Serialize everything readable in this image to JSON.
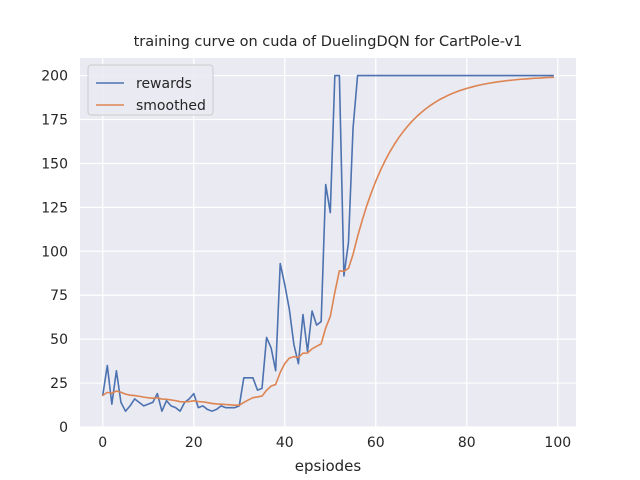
{
  "chart_data": {
    "type": "line",
    "title": "training curve on cuda of DuelingDQN for CartPole-v1",
    "xlabel": "epsiodes",
    "ylabel": "",
    "xlim": [
      -5,
      104
    ],
    "ylim": [
      0,
      210
    ],
    "xticks": [
      0,
      20,
      40,
      60,
      80,
      100
    ],
    "yticks": [
      0,
      25,
      50,
      75,
      100,
      125,
      150,
      175,
      200
    ],
    "grid": true,
    "legend_position": "top-left",
    "background": "#eaeaf2",
    "series": [
      {
        "name": "rewards",
        "color": "#4c72b0",
        "x": [
          0,
          1,
          2,
          3,
          4,
          5,
          6,
          7,
          8,
          9,
          10,
          11,
          12,
          13,
          14,
          15,
          16,
          17,
          18,
          19,
          20,
          21,
          22,
          23,
          24,
          25,
          26,
          27,
          28,
          29,
          30,
          31,
          32,
          33,
          34,
          35,
          36,
          37,
          38,
          39,
          40,
          41,
          42,
          43,
          44,
          45,
          46,
          47,
          48,
          49,
          50,
          51,
          52,
          53,
          54,
          55,
          56,
          57,
          58,
          59,
          60,
          61,
          62,
          63,
          64,
          65,
          66,
          67,
          68,
          69,
          70,
          71,
          72,
          73,
          74,
          75,
          76,
          77,
          78,
          79,
          80,
          81,
          82,
          83,
          84,
          85,
          86,
          87,
          88,
          89,
          90,
          91,
          92,
          93,
          94,
          95,
          96,
          97,
          98,
          99
        ],
        "y": [
          18,
          35,
          13,
          32,
          14,
          9,
          12,
          16,
          14,
          12,
          13,
          14,
          19,
          9,
          15,
          12,
          11,
          9,
          14,
          16,
          19,
          11,
          12,
          10,
          9,
          10,
          12,
          11,
          11,
          11,
          12,
          28,
          28,
          28,
          21,
          22,
          51,
          45,
          32,
          93,
          81,
          67,
          47,
          36,
          64,
          43,
          66,
          58,
          60,
          138,
          122,
          200,
          200,
          86,
          105,
          170,
          200,
          200,
          200,
          200,
          200,
          200,
          200,
          200,
          200,
          200,
          200,
          200,
          200,
          200,
          200,
          200,
          200,
          200,
          200,
          200,
          200,
          200,
          200,
          200,
          200,
          200,
          200,
          200,
          200,
          200,
          200,
          200,
          200,
          200,
          200,
          200,
          200,
          200,
          200,
          200,
          200,
          200,
          200,
          200
        ]
      },
      {
        "name": "smoothed",
        "color": "#dd8452",
        "x": [
          0,
          1,
          2,
          3,
          4,
          5,
          6,
          7,
          8,
          9,
          10,
          11,
          12,
          13,
          14,
          15,
          16,
          17,
          18,
          19,
          20,
          21,
          22,
          23,
          24,
          25,
          26,
          27,
          28,
          29,
          30,
          31,
          32,
          33,
          34,
          35,
          36,
          37,
          38,
          39,
          40,
          41,
          42,
          43,
          44,
          45,
          46,
          47,
          48,
          49,
          50,
          51,
          52,
          53,
          54,
          55,
          56,
          57,
          58,
          59,
          60,
          61,
          62,
          63,
          64,
          65,
          66,
          67,
          68,
          69,
          70,
          71,
          72,
          73,
          74,
          75,
          76,
          77,
          78,
          79,
          80,
          81,
          82,
          83,
          84,
          85,
          86,
          87,
          88,
          89,
          90,
          91,
          92,
          93,
          94,
          95,
          96,
          97,
          98,
          99
        ],
        "y": [
          18,
          19.7,
          19.2,
          20.5,
          19.8,
          18.7,
          18.1,
          17.9,
          17.5,
          17.0,
          16.6,
          16.4,
          16.6,
          15.9,
          15.8,
          15.4,
          15.0,
          14.4,
          14.3,
          14.5,
          14.9,
          14.5,
          14.3,
          13.9,
          13.4,
          13.1,
          13.0,
          12.8,
          12.6,
          12.4,
          12.4,
          14.0,
          15.4,
          16.7,
          17.1,
          17.6,
          20.9,
          23.3,
          24.2,
          31.1,
          36.1,
          39.2,
          40.0,
          39.6,
          42.0,
          42.1,
          44.5,
          45.9,
          47.3,
          56.4,
          62.9,
          76.6,
          88.9,
          88.6,
          90.3,
          98.2,
          108.4,
          117.5,
          125.8,
          133.2,
          139.9,
          145.9,
          151.3,
          156.2,
          160.5,
          164.5,
          168.0,
          171.2,
          174.1,
          176.7,
          179.0,
          181.1,
          183.0,
          184.7,
          186.3,
          187.6,
          188.9,
          190.0,
          191.0,
          191.9,
          192.7,
          193.4,
          194.1,
          194.7,
          195.2,
          195.7,
          196.1,
          196.5,
          196.8,
          197.2,
          197.4,
          197.7,
          197.9,
          198.1,
          198.3,
          198.5,
          198.6,
          198.8,
          198.9,
          199.0
        ]
      }
    ]
  }
}
